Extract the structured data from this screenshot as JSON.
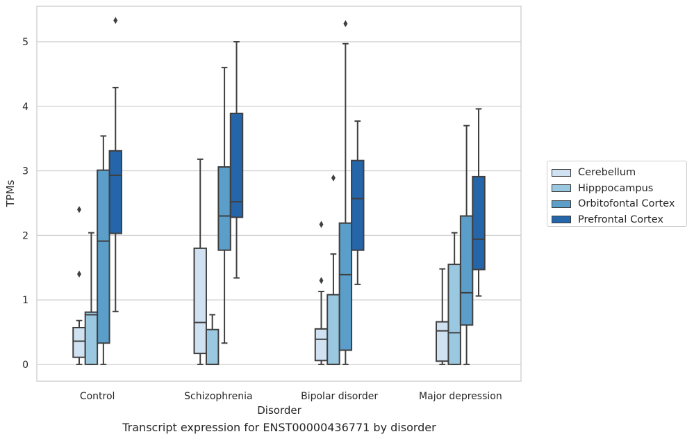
{
  "caption": "Transcript expression for ENST00000436771 by disorder",
  "chart_data": {
    "type": "boxplot",
    "xlabel": "Disorder",
    "ylabel": "TPMs",
    "ylim": [
      -0.26,
      5.55
    ],
    "yticks": [
      0,
      1,
      2,
      3,
      4,
      5
    ],
    "grid": true,
    "legend_position": "right-outside",
    "categories": [
      "Control",
      "Schizophrenia",
      "Bipolar disorder",
      "Major depression"
    ],
    "series": [
      {
        "name": "Cerebellum",
        "color": "#d0e1f2",
        "boxes": [
          {
            "whisker_low": 0.0,
            "q1": 0.11,
            "median": 0.36,
            "q3": 0.57,
            "whisker_high": 0.68,
            "outliers": [
              1.4,
              2.4
            ]
          },
          {
            "whisker_low": 0.0,
            "q1": 0.17,
            "median": 0.65,
            "q3": 1.8,
            "whisker_high": 3.18,
            "outliers": []
          },
          {
            "whisker_low": 0.0,
            "q1": 0.06,
            "median": 0.39,
            "q3": 0.55,
            "whisker_high": 1.13,
            "outliers": [
              1.3,
              2.17
            ]
          },
          {
            "whisker_low": 0.0,
            "q1": 0.05,
            "median": 0.52,
            "q3": 0.66,
            "whisker_high": 1.48,
            "outliers": []
          }
        ]
      },
      {
        "name": "Hipppocampus",
        "color": "#9ac8e0",
        "boxes": [
          {
            "whisker_low": 0.0,
            "q1": 0.0,
            "median": 0.77,
            "q3": 0.81,
            "whisker_high": 2.04,
            "outliers": []
          },
          {
            "whisker_low": 0.0,
            "q1": 0.0,
            "median": 0.0,
            "q3": 0.54,
            "whisker_high": 0.77,
            "outliers": []
          },
          {
            "whisker_low": 0.0,
            "q1": 0.0,
            "median": 0.0,
            "q3": 1.08,
            "whisker_high": 1.71,
            "outliers": [
              2.89
            ]
          },
          {
            "whisker_low": 0.0,
            "q1": 0.0,
            "median": 0.49,
            "q3": 1.55,
            "whisker_high": 2.04,
            "outliers": []
          }
        ]
      },
      {
        "name": "Orbitofontal Cortex",
        "color": "#5a9ec9",
        "boxes": [
          {
            "whisker_low": 0.0,
            "q1": 0.33,
            "median": 1.91,
            "q3": 3.01,
            "whisker_high": 3.54,
            "outliers": []
          },
          {
            "whisker_low": 0.33,
            "q1": 1.77,
            "median": 2.3,
            "q3": 3.06,
            "whisker_high": 4.6,
            "outliers": []
          },
          {
            "whisker_low": 0.0,
            "q1": 0.22,
            "median": 1.39,
            "q3": 2.19,
            "whisker_high": 4.97,
            "outliers": [
              5.28
            ]
          },
          {
            "whisker_low": 0.0,
            "q1": 0.61,
            "median": 1.11,
            "q3": 2.3,
            "whisker_high": 3.7,
            "outliers": []
          }
        ]
      },
      {
        "name": "Prefrontal Cortex",
        "color": "#2565a9",
        "boxes": [
          {
            "whisker_low": 0.82,
            "q1": 2.03,
            "median": 2.93,
            "q3": 3.31,
            "whisker_high": 4.29,
            "outliers": [
              5.33
            ]
          },
          {
            "whisker_low": 1.34,
            "q1": 2.28,
            "median": 2.52,
            "q3": 3.89,
            "whisker_high": 5.0,
            "outliers": []
          },
          {
            "whisker_low": 1.24,
            "q1": 1.77,
            "median": 2.57,
            "q3": 3.16,
            "whisker_high": 3.77,
            "outliers": []
          },
          {
            "whisker_low": 1.06,
            "q1": 1.47,
            "median": 1.94,
            "q3": 2.91,
            "whisker_high": 3.96,
            "outliers": []
          }
        ]
      }
    ]
  }
}
